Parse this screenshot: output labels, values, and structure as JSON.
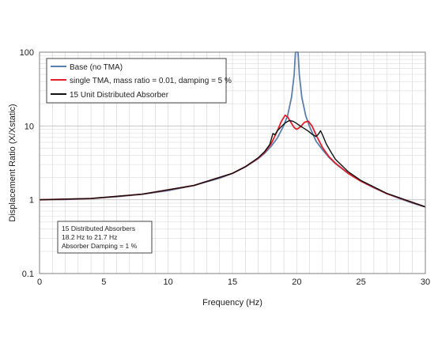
{
  "chart_data": {
    "type": "line",
    "xlabel": "Frequency (Hz)",
    "ylabel": "Displacement Ratio (X/Xstatic)",
    "xlim": [
      0,
      30
    ],
    "ylim": [
      0.1,
      100
    ],
    "y_scale": "log",
    "grid": true,
    "legend_position": "top-left",
    "x_ticks": [
      "0",
      "5",
      "10",
      "15",
      "20",
      "25",
      "30"
    ],
    "y_ticks": [
      "0.1",
      "1",
      "10",
      "100"
    ],
    "annotation": [
      "15 Distributed Absorbers",
      "18.2 Hz to 21.7 Hz",
      "Absorber Damping = 1 %"
    ],
    "series": [
      {
        "name": "Base (no TMA)",
        "color": "#5b7fae",
        "x": [
          0,
          2,
          4,
          6,
          8,
          10,
          12,
          14,
          15,
          16,
          17,
          17.5,
          18,
          18.5,
          19,
          19.3,
          19.6,
          19.8,
          19.9,
          20,
          20.1,
          20.2,
          20.4,
          20.7,
          21,
          21.5,
          22,
          22.5,
          23,
          24,
          25,
          26,
          27,
          28,
          29,
          30
        ],
        "y": [
          1.0,
          1.01,
          1.04,
          1.1,
          1.19,
          1.33,
          1.56,
          1.96,
          2.28,
          2.78,
          3.6,
          4.26,
          5.26,
          6.9,
          10.2,
          14.0,
          24.7,
          50,
          100,
          100,
          100,
          49.5,
          24.2,
          13.8,
          9.76,
          6.25,
          4.76,
          3.76,
          3.1,
          2.27,
          1.78,
          1.45,
          1.21,
          1.04,
          0.9,
          0.8
        ]
      },
      {
        "name": "single TMA, mass ratio = 0.01, damping = 5 %",
        "color": "#e0202a",
        "x": [
          0,
          4,
          8,
          12,
          15,
          16,
          17,
          17.5,
          18,
          18.5,
          18.8,
          19.1,
          19.3,
          19.6,
          19.8,
          20,
          20.3,
          20.6,
          20.9,
          21.2,
          21.5,
          22,
          22.5,
          23,
          24,
          25,
          27,
          30
        ],
        "y": [
          1.0,
          1.04,
          1.19,
          1.56,
          2.28,
          2.8,
          3.65,
          4.4,
          5.7,
          8.6,
          11.5,
          14.0,
          13.2,
          10.8,
          9.5,
          9.0,
          9.8,
          11.2,
          11.6,
          9.9,
          7.6,
          5.1,
          3.85,
          3.15,
          2.28,
          1.78,
          1.21,
          0.8
        ]
      },
      {
        "name": "15 Unit Distributed Absorber",
        "color": "#111111",
        "x": [
          0,
          4,
          8,
          12,
          15,
          16,
          17,
          17.5,
          17.9,
          18.15,
          18.3,
          18.5,
          18.8,
          19.1,
          19.4,
          19.7,
          20,
          20.3,
          20.6,
          20.9,
          21.2,
          21.5,
          21.7,
          21.85,
          22,
          22.3,
          22.7,
          23,
          24,
          25,
          27,
          30
        ],
        "y": [
          1.0,
          1.04,
          1.19,
          1.56,
          2.28,
          2.8,
          3.7,
          4.5,
          5.6,
          7.9,
          7.6,
          8.6,
          9.8,
          11.0,
          11.8,
          11.6,
          10.8,
          9.9,
          9.2,
          8.5,
          7.7,
          7.2,
          7.8,
          8.6,
          7.6,
          5.7,
          4.3,
          3.55,
          2.4,
          1.82,
          1.22,
          0.8
        ]
      }
    ]
  }
}
